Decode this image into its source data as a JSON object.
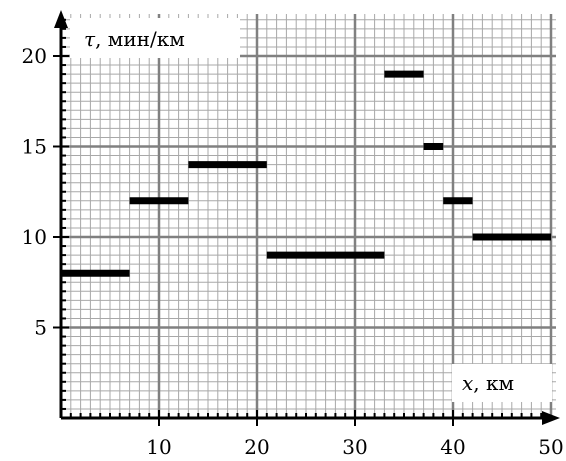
{
  "chart_data": {
    "type": "line",
    "title": "",
    "xlabel": {
      "symbol": "x",
      "unit": ", км"
    },
    "ylabel": {
      "symbol": "τ",
      "unit": ", мин/км"
    },
    "xlim": [
      0,
      50
    ],
    "ylim": [
      0,
      22
    ],
    "x_major_step": 10,
    "y_major_step": 5,
    "x_minor_step": 1,
    "y_minor_step": 0.5,
    "grid": true,
    "x_ticks": [
      10,
      20,
      30,
      40,
      50
    ],
    "y_ticks": [
      5,
      10,
      15,
      20
    ],
    "segments": [
      {
        "x": [
          0,
          7
        ],
        "y": 8
      },
      {
        "x": [
          7,
          13
        ],
        "y": 12
      },
      {
        "x": [
          13,
          21
        ],
        "y": 14
      },
      {
        "x": [
          21,
          33
        ],
        "y": 9
      },
      {
        "x": [
          33,
          37
        ],
        "y": 19
      },
      {
        "x": [
          37,
          39
        ],
        "y": 15
      },
      {
        "x": [
          39,
          42
        ],
        "y": 12
      },
      {
        "x": [
          42,
          50
        ],
        "y": 10
      }
    ]
  }
}
